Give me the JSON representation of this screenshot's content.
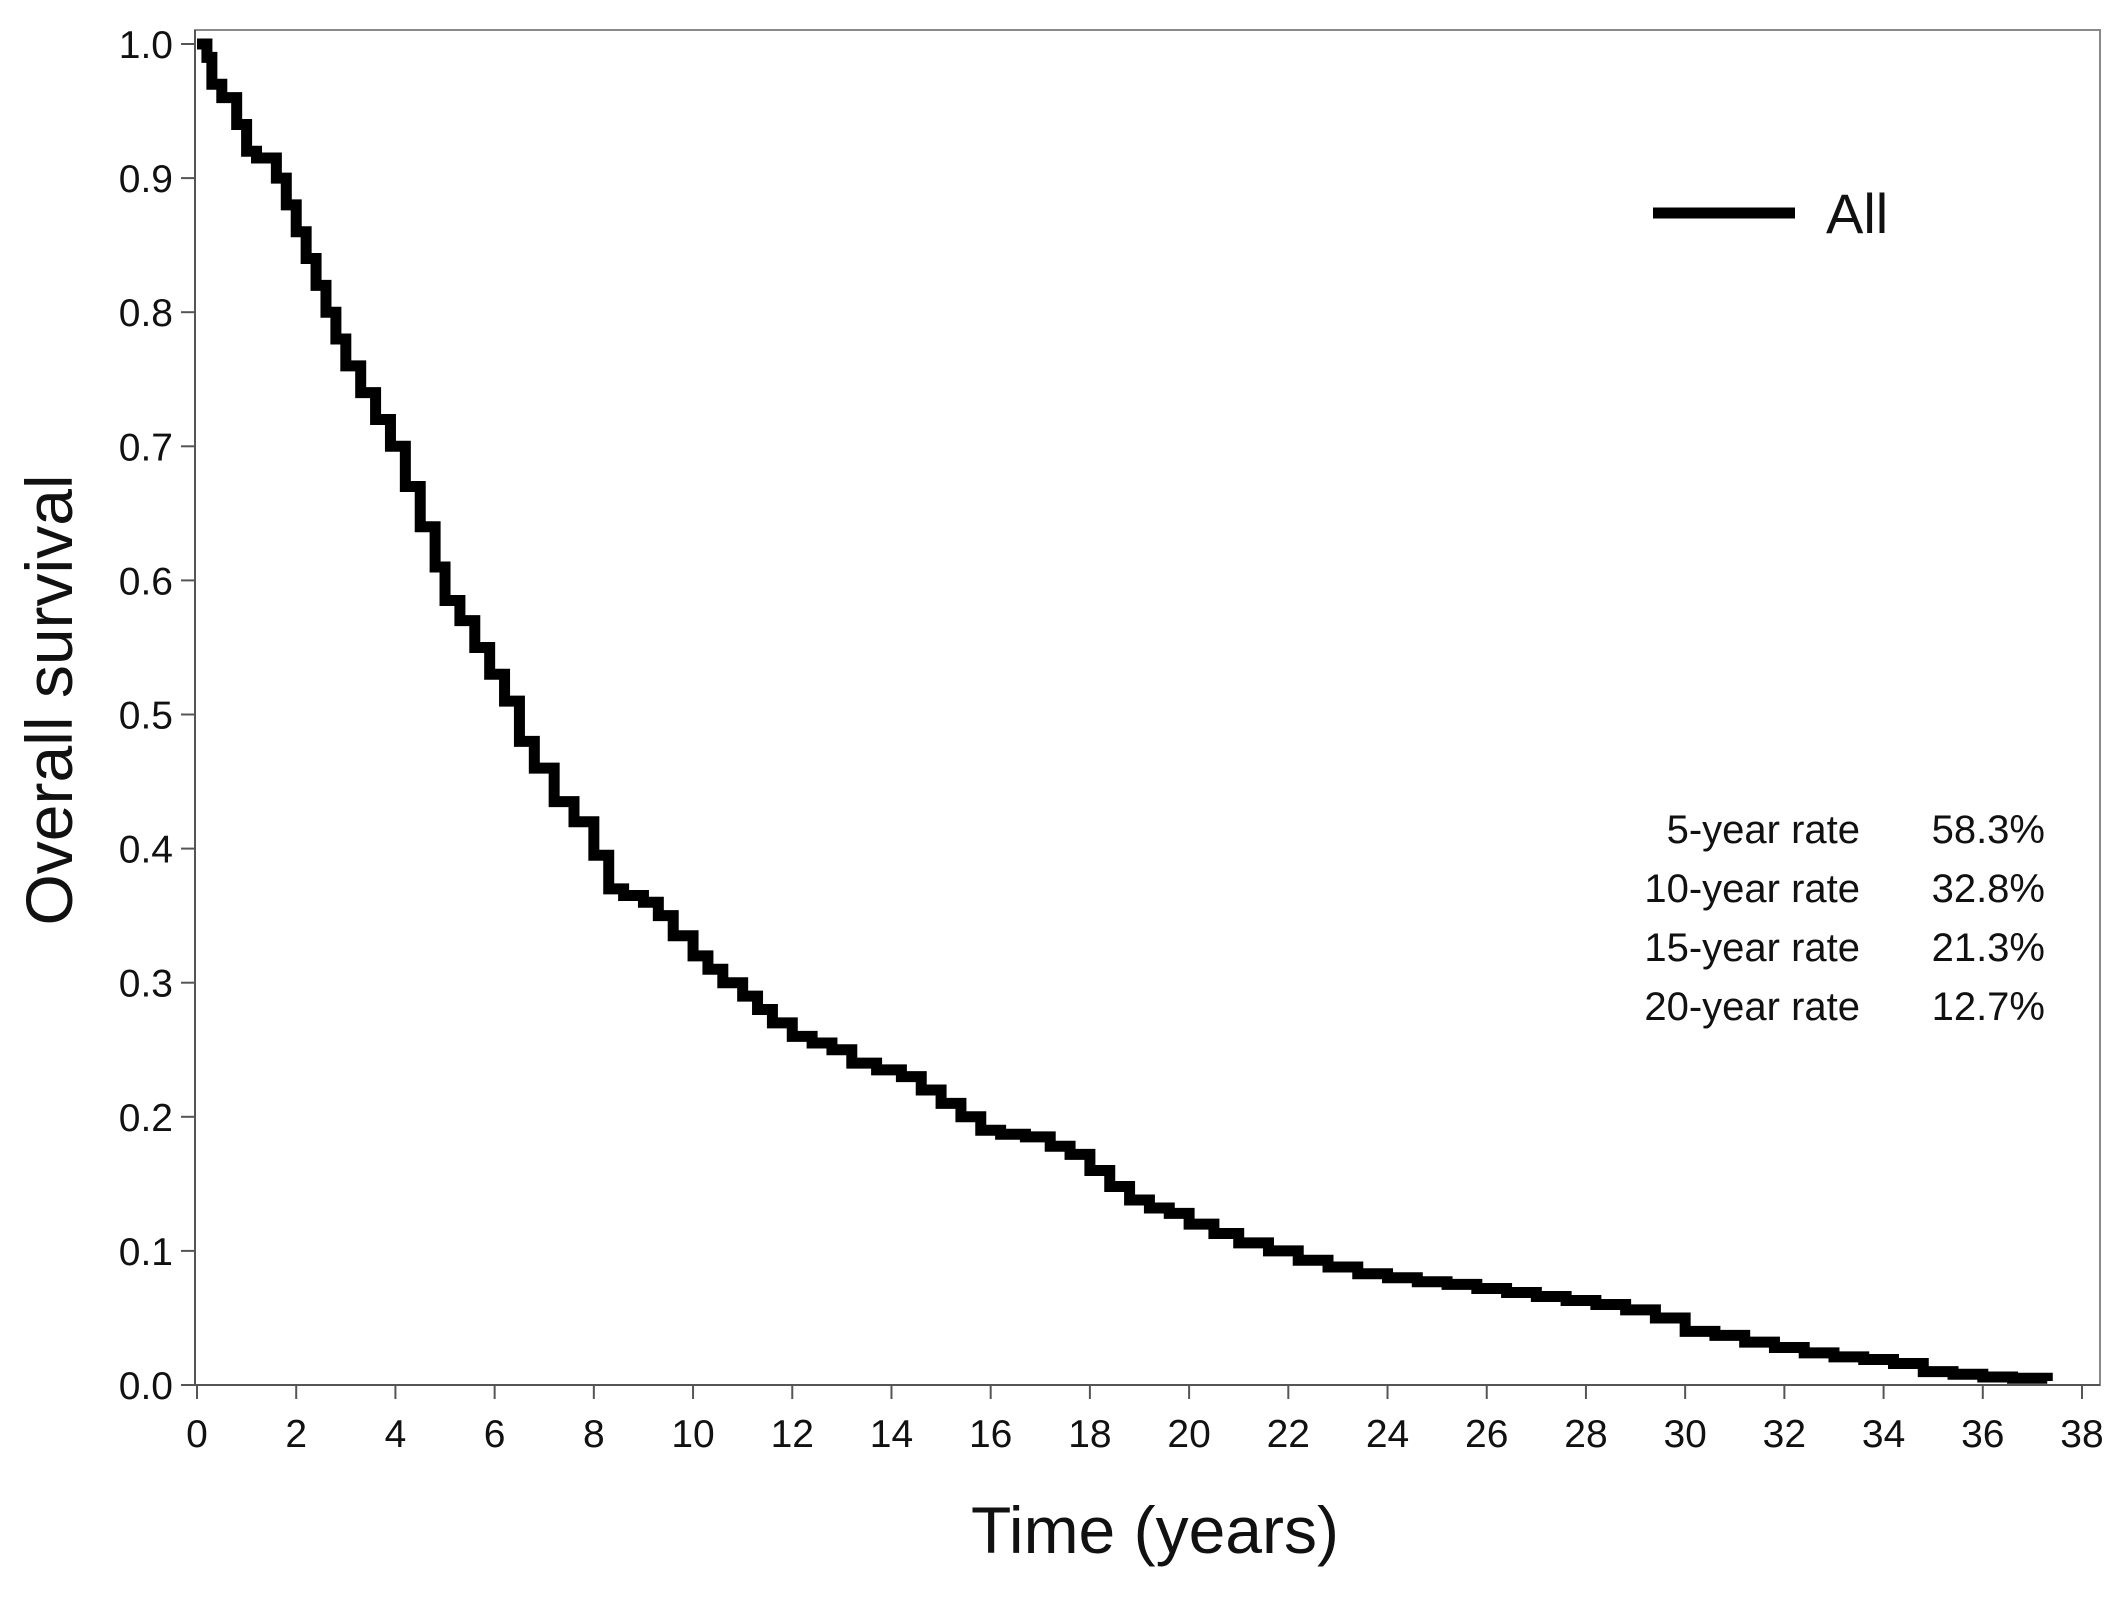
{
  "chart_data": {
    "type": "line",
    "title": "",
    "xlabel": "Time (years)",
    "ylabel": "Overall survival",
    "xlim": [
      0,
      38
    ],
    "ylim": [
      0.0,
      1.0
    ],
    "xticks": [
      0,
      2,
      4,
      6,
      8,
      10,
      12,
      14,
      16,
      18,
      20,
      22,
      24,
      26,
      28,
      30,
      32,
      34,
      36,
      38
    ],
    "xtick_labels": [
      "0",
      "2",
      "4",
      "6",
      "8",
      "10",
      "12",
      "14",
      "16",
      "18",
      "20",
      "22",
      "24",
      "26",
      "28",
      "30",
      "32",
      "34",
      "36",
      "38"
    ],
    "yticks": [
      0.0,
      0.1,
      0.2,
      0.3,
      0.4,
      0.5,
      0.6,
      0.7,
      0.8,
      0.9,
      1.0
    ],
    "ytick_labels": [
      "0.0",
      "0.1",
      "0.2",
      "0.3",
      "0.4",
      "0.5",
      "0.6",
      "0.7",
      "0.8",
      "0.9",
      "1.0"
    ],
    "grid": false,
    "legend": {
      "position": "top-right",
      "entries": [
        "All"
      ]
    },
    "series": [
      {
        "name": "All",
        "color": "#000000",
        "step": true,
        "x": [
          0,
          0.2,
          0.3,
          0.5,
          0.8,
          1.0,
          1.2,
          1.6,
          1.8,
          2.0,
          2.2,
          2.4,
          2.6,
          2.8,
          3.0,
          3.3,
          3.6,
          3.9,
          4.2,
          4.5,
          4.8,
          5.0,
          5.3,
          5.6,
          5.9,
          6.2,
          6.5,
          6.8,
          7.2,
          7.6,
          8.0,
          8.3,
          8.6,
          9.0,
          9.3,
          9.6,
          10.0,
          10.3,
          10.6,
          11.0,
          11.3,
          11.6,
          12.0,
          12.4,
          12.8,
          13.2,
          13.7,
          14.2,
          14.6,
          15.0,
          15.4,
          15.8,
          16.2,
          16.7,
          17.2,
          17.6,
          18.0,
          18.4,
          18.8,
          19.2,
          19.6,
          20.0,
          20.5,
          21.0,
          21.6,
          22.2,
          22.8,
          23.4,
          24.0,
          24.6,
          25.2,
          25.8,
          26.4,
          27.0,
          27.6,
          28.2,
          28.8,
          29.4,
          30.0,
          30.6,
          31.2,
          31.8,
          32.4,
          33.0,
          33.6,
          34.2,
          34.8,
          35.4,
          36.0,
          36.6,
          37.3
        ],
        "y": [
          1.0,
          0.99,
          0.97,
          0.96,
          0.94,
          0.92,
          0.915,
          0.9,
          0.88,
          0.86,
          0.84,
          0.82,
          0.8,
          0.78,
          0.76,
          0.74,
          0.72,
          0.7,
          0.67,
          0.64,
          0.61,
          0.585,
          0.57,
          0.55,
          0.53,
          0.51,
          0.48,
          0.46,
          0.435,
          0.42,
          0.395,
          0.37,
          0.365,
          0.36,
          0.35,
          0.335,
          0.32,
          0.31,
          0.3,
          0.29,
          0.28,
          0.27,
          0.26,
          0.255,
          0.25,
          0.24,
          0.235,
          0.23,
          0.22,
          0.21,
          0.2,
          0.19,
          0.187,
          0.185,
          0.178,
          0.172,
          0.16,
          0.148,
          0.138,
          0.132,
          0.128,
          0.12,
          0.113,
          0.106,
          0.1,
          0.093,
          0.088,
          0.083,
          0.08,
          0.077,
          0.075,
          0.072,
          0.069,
          0.066,
          0.063,
          0.06,
          0.056,
          0.05,
          0.04,
          0.037,
          0.032,
          0.028,
          0.024,
          0.021,
          0.019,
          0.016,
          0.01,
          0.008,
          0.006,
          0.005,
          0.003
        ]
      }
    ],
    "annotations": [
      {
        "label": "5-year rate",
        "value": "58.3%"
      },
      {
        "label": "10-year rate",
        "value": "32.8%"
      },
      {
        "label": "15-year rate",
        "value": "21.3%"
      },
      {
        "label": "20-year rate",
        "value": "12.7%"
      }
    ]
  }
}
